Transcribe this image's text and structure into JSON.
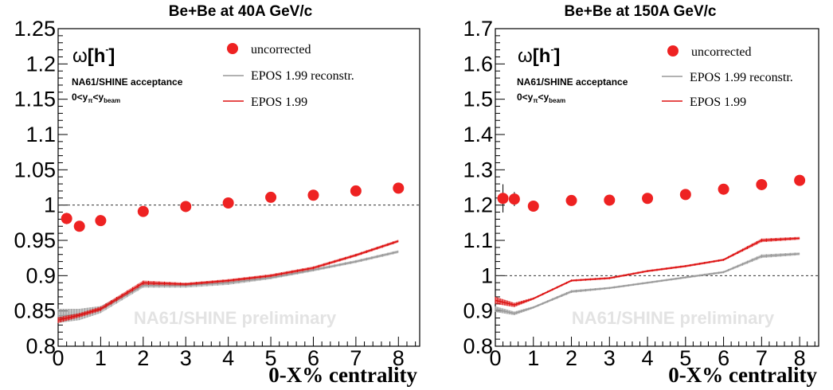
{
  "chart_data": [
    {
      "type": "scatter",
      "title": "Be+Be at 40A GeV/c",
      "xlabel": "0-X% centrality",
      "ylabel": "ω[h⁻]",
      "xlim": [
        0,
        8.5
      ],
      "ylim": [
        0.8,
        1.25
      ],
      "xticks": [
        0,
        1,
        2,
        3,
        4,
        5,
        6,
        7,
        8
      ],
      "xtick_labels": [
        "0",
        "1",
        "2",
        "3",
        "4",
        "5",
        "6",
        "7",
        "8"
      ],
      "yticks": [
        0.8,
        0.85,
        0.9,
        0.95,
        1.0,
        1.05,
        1.1,
        1.15,
        1.2,
        1.25
      ],
      "ytick_labels": [
        "0.8",
        "0.85",
        "0.9",
        "0.95",
        "1",
        "1.05",
        "1.1",
        "1.15",
        "1.2",
        "1.25"
      ],
      "reference_line": 1.0,
      "omega_label": "ω",
      "h_label": "h",
      "acceptance_label": "NA61/SHINE acceptance",
      "rapidity_label": {
        "p1": "0<y",
        "s1": "π",
        "p2": "<y",
        "s2": "beam"
      },
      "watermark": "NA61/SHINE preliminary",
      "legend": [
        {
          "label": "uncorrected",
          "kind": "marker",
          "color": "#ee2222"
        },
        {
          "label": "EPOS 1.99 reconstr.",
          "kind": "line",
          "color": "#999999"
        },
        {
          "label": "EPOS 1.99",
          "kind": "line",
          "color": "#dd1111"
        }
      ],
      "series": [
        {
          "name": "uncorrected",
          "kind": "points",
          "color": "#ee2222",
          "x": [
            0.2,
            0.5,
            1,
            2,
            3,
            4,
            5,
            6,
            7,
            8
          ],
          "y": [
            0.981,
            0.97,
            0.978,
            0.991,
            0.998,
            1.003,
            1.011,
            1.014,
            1.02,
            1.024
          ],
          "err": [
            0.008,
            0.007,
            0.006,
            0.003,
            0.003,
            0.003,
            0.003,
            0.003,
            0.003,
            0.003
          ]
        },
        {
          "name": "EPOS 1.99 reconstr.",
          "kind": "band",
          "color": "#999999",
          "x": [
            0,
            0.5,
            1,
            2,
            3,
            4,
            5,
            6,
            7,
            8
          ],
          "y": [
            0.843,
            0.845,
            0.852,
            0.886,
            0.886,
            0.89,
            0.897,
            0.908,
            0.92,
            0.934
          ],
          "err": [
            0.01,
            0.008,
            0.005,
            0.003,
            0.003,
            0.003,
            0.002,
            0.002,
            0.002,
            0.002
          ]
        },
        {
          "name": "EPOS 1.99",
          "kind": "band",
          "color": "#dd1111",
          "x": [
            0,
            0.5,
            1,
            2,
            3,
            4,
            5,
            6,
            7,
            8
          ],
          "y": [
            0.837,
            0.844,
            0.853,
            0.89,
            0.888,
            0.893,
            0.9,
            0.911,
            0.929,
            0.949
          ],
          "err": [
            0.004,
            0.003,
            0.003,
            0.003,
            0.002,
            0.002,
            0.002,
            0.002,
            0.002,
            0.002
          ]
        }
      ]
    },
    {
      "type": "scatter",
      "title": "Be+Be at 150A GeV/c",
      "xlabel": "0-X% centrality",
      "ylabel": "ω[h⁻]",
      "xlim": [
        0,
        8.5
      ],
      "ylim": [
        0.8,
        1.7
      ],
      "xticks": [
        0,
        1,
        2,
        3,
        4,
        5,
        6,
        7,
        8
      ],
      "xtick_labels": [
        "0",
        "1",
        "2",
        "3",
        "4",
        "5",
        "6",
        "7",
        "8"
      ],
      "yticks": [
        0.8,
        0.9,
        1.0,
        1.1,
        1.2,
        1.3,
        1.4,
        1.5,
        1.6,
        1.7
      ],
      "ytick_labels": [
        "0.8",
        "0.9",
        "1",
        "1.1",
        "1.2",
        "1.3",
        "1.4",
        "1.5",
        "1.6",
        "1.7"
      ],
      "reference_line": 1.0,
      "omega_label": "ω",
      "h_label": "h",
      "acceptance_label": "NA61/SHINE acceptance",
      "rapidity_label": {
        "p1": "0<y",
        "s1": "π",
        "p2": "<y",
        "s2": "beam"
      },
      "watermark": "NA61/SHINE preliminary",
      "legend": [
        {
          "label": "uncorrected",
          "kind": "marker",
          "color": "#ee2222"
        },
        {
          "label": "EPOS 1.99 reconstr.",
          "kind": "line",
          "color": "#999999"
        },
        {
          "label": "EPOS 1.99",
          "kind": "line",
          "color": "#dd1111"
        }
      ],
      "series": [
        {
          "name": "uncorrected",
          "kind": "points",
          "color": "#ee2222",
          "x": [
            0.2,
            0.5,
            1,
            2,
            3,
            4,
            5,
            6,
            7,
            8
          ],
          "y": [
            1.219,
            1.217,
            1.197,
            1.213,
            1.214,
            1.219,
            1.23,
            1.245,
            1.258,
            1.27
          ],
          "err": [
            0.04,
            0.02,
            0.008,
            0.008,
            0.007,
            0.007,
            0.007,
            0.007,
            0.007,
            0.007
          ]
        },
        {
          "name": "EPOS 1.99 reconstr.",
          "kind": "band",
          "color": "#999999",
          "x": [
            0,
            0.5,
            1,
            2,
            3,
            4,
            5,
            6,
            7,
            8
          ],
          "y": [
            0.905,
            0.893,
            0.91,
            0.955,
            0.965,
            0.98,
            0.995,
            1.01,
            1.055,
            1.062
          ],
          "err": [
            0.008,
            0.005,
            0.003,
            0.004,
            0.003,
            0.003,
            0.003,
            0.003,
            0.005,
            0.004
          ]
        },
        {
          "name": "EPOS 1.99",
          "kind": "band",
          "color": "#dd1111",
          "x": [
            0,
            0.5,
            1,
            2,
            3,
            4,
            5,
            6,
            7,
            8
          ],
          "y": [
            0.93,
            0.917,
            0.935,
            0.986,
            0.993,
            1.013,
            1.027,
            1.045,
            1.1,
            1.106
          ],
          "err": [
            0.01,
            0.006,
            0.003,
            0.003,
            0.003,
            0.003,
            0.003,
            0.003,
            0.005,
            0.004
          ]
        }
      ]
    }
  ]
}
